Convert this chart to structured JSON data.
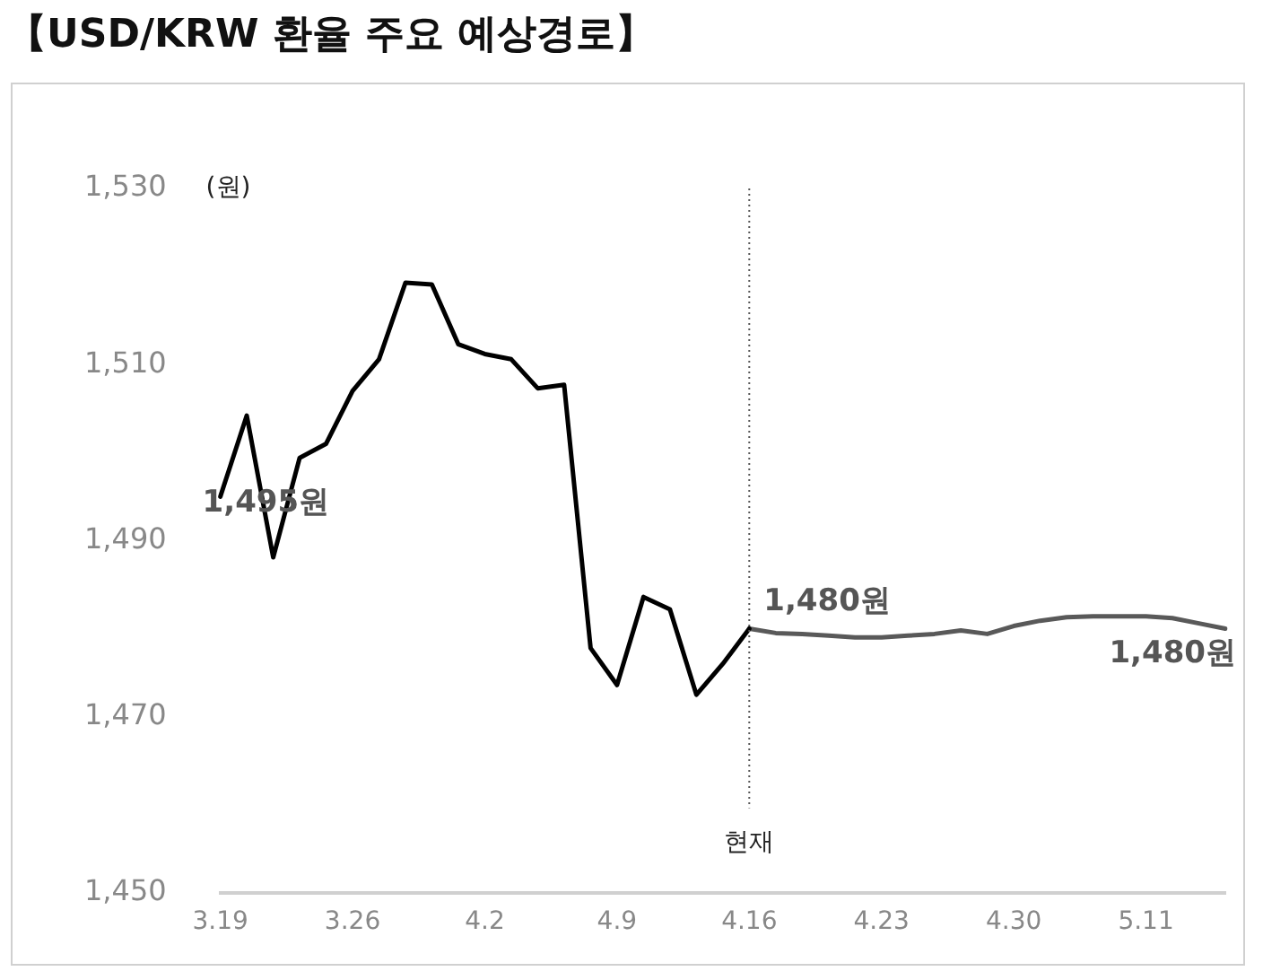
{
  "chart_data": {
    "type": "line",
    "title": "【USD/KRW 환율 주요 예상경로】",
    "ylabel": "(원)",
    "categories": [
      "3.19",
      null,
      null,
      null,
      null,
      "3.26",
      null,
      null,
      null,
      null,
      "4.2",
      null,
      null,
      null,
      null,
      "4.9",
      null,
      null,
      null,
      null,
      "4.16",
      null,
      null,
      null,
      null,
      "4.23",
      null,
      null,
      null,
      null,
      "4.30",
      null,
      null,
      null,
      null,
      "5.11",
      null,
      null,
      null
    ],
    "series": [
      {
        "color": "#000000",
        "values": [
          1495,
          1504.2,
          1488.1,
          1499.4,
          1501,
          1507,
          1510.6,
          1519.3,
          1519.1,
          1512.3,
          1511.2,
          1510.6,
          1507.3,
          1507.7,
          1477.8,
          1473.6,
          1483.6,
          1482.2,
          1472.5,
          1476,
          1480,
          null,
          null,
          null,
          null,
          null,
          null,
          null,
          null,
          null,
          null,
          null,
          null,
          null,
          null,
          null,
          null,
          null,
          null
        ]
      },
      {
        "color": "#595959",
        "values": [
          null,
          null,
          null,
          null,
          null,
          null,
          null,
          null,
          null,
          null,
          null,
          null,
          null,
          null,
          null,
          null,
          null,
          null,
          null,
          null,
          1480,
          1479.5,
          1479.4,
          1479.2,
          1479,
          1479,
          1479.2,
          1479.4,
          1479.8,
          1479.4,
          1480.3,
          1480.9,
          1481.3,
          1481.4,
          1481.4,
          1481.4,
          1481.2,
          1480.6,
          1480
        ]
      }
    ],
    "ylim": [
      1450,
      1530
    ],
    "yticks": [
      {
        "value": 1450,
        "label": "1,450"
      },
      {
        "value": 1470,
        "label": "1,470"
      },
      {
        "value": 1490,
        "label": "1,490"
      },
      {
        "value": 1510,
        "label": "1,510"
      },
      {
        "value": 1530,
        "label": "1,530"
      }
    ],
    "ref_lines": [
      {
        "axis": "x",
        "value": "4.16",
        "label": "현재",
        "color": "#555555",
        "line_style": "dotted"
      }
    ],
    "annotations": [
      {
        "text": "1,495원",
        "x": "3.19",
        "y": 1495
      },
      {
        "text": "1,480원",
        "x": "4.16",
        "y": 1480
      },
      {
        "text": "1,480원",
        "y": 1480
      }
    ],
    "grid": false,
    "legend": false,
    "marker": "none",
    "line_style": "solid"
  }
}
